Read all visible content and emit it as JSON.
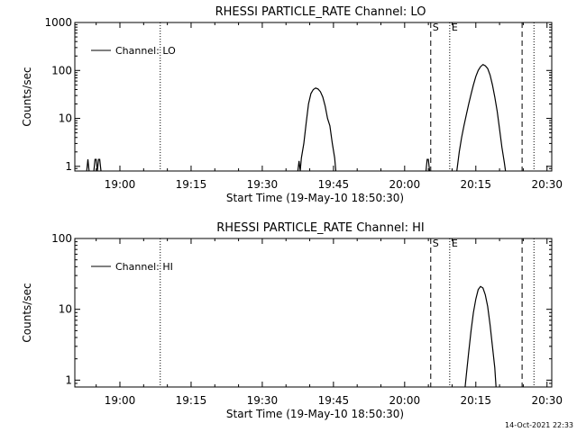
{
  "footer": {
    "timestamp": "14-Oct-2021 22:33"
  },
  "chart_data": [
    {
      "type": "line",
      "title": "RHESSI PARTICLE_RATE Channel: LO",
      "xlabel": "Start Time (19-May-10 18:50:30)",
      "ylabel": "Counts/sec",
      "yscale": "log",
      "ylim": [
        0.8,
        1000
      ],
      "xlim": [
        "18:50:30",
        "20:31:00"
      ],
      "x_ticks": [
        "19:00",
        "19:15",
        "19:30",
        "19:45",
        "20:00",
        "20:15",
        "20:30"
      ],
      "y_ticks": [
        "1",
        "10",
        "100",
        "1000"
      ],
      "legend": {
        "position": "top-left",
        "entries": [
          "Channel: LO"
        ]
      },
      "markers": [
        {
          "label": "",
          "time": "19:08:30",
          "style": "dotted"
        },
        {
          "label": "S",
          "time": "20:05:30",
          "style": "dashed"
        },
        {
          "label": "E",
          "time": "20:09:30",
          "style": "dotted"
        },
        {
          "label": "",
          "time": "20:24:45",
          "style": "dashed"
        },
        {
          "label": "",
          "time": "20:27:15",
          "style": "dotted"
        }
      ],
      "series": [
        {
          "segments": [
            [
              [
                "18:53:00",
                0.8
              ],
              [
                "18:53:15",
                1.4
              ],
              [
                "18:53:30",
                0.8
              ]
            ],
            [
              [
                "18:54:30",
                0.8
              ],
              [
                "18:54:45",
                1.4
              ],
              [
                "18:55:00",
                1.4
              ],
              [
                "18:55:15",
                0.8
              ],
              [
                "18:55:30",
                1.4
              ],
              [
                "18:55:45",
                1.4
              ],
              [
                "18:56:00",
                0.8
              ]
            ],
            [
              [
                "19:37:30",
                0.8
              ],
              [
                "19:37:45",
                1.3
              ],
              [
                "19:38:00",
                0.8
              ],
              [
                "19:38:15",
                1.5
              ],
              [
                "19:38:45",
                3.0
              ],
              [
                "19:39:15",
                8.0
              ],
              [
                "19:39:45",
                20.0
              ],
              [
                "19:40:15",
                33.0
              ],
              [
                "19:40:45",
                40.0
              ],
              [
                "19:41:15",
                43.0
              ],
              [
                "19:41:45",
                41.0
              ],
              [
                "19:42:15",
                36.0
              ],
              [
                "19:42:45",
                28.0
              ],
              [
                "19:43:15",
                18.0
              ],
              [
                "19:43:45",
                10.0
              ],
              [
                "19:44:15",
                7.0
              ],
              [
                "19:44:45",
                3.0
              ],
              [
                "19:45:15",
                1.5
              ],
              [
                "19:45:30",
                0.8
              ]
            ],
            [
              [
                "20:04:30",
                0.8
              ],
              [
                "20:04:45",
                1.4
              ],
              [
                "20:05:00",
                1.4
              ],
              [
                "20:05:15",
                0.8
              ]
            ],
            [
              [
                "20:11:00",
                0.8
              ],
              [
                "20:11:30",
                2.0
              ],
              [
                "20:12:00",
                4.0
              ],
              [
                "20:12:30",
                7.0
              ],
              [
                "20:13:00",
                12.0
              ],
              [
                "20:13:30",
                20.0
              ],
              [
                "20:14:00",
                32.0
              ],
              [
                "20:14:30",
                50.0
              ],
              [
                "20:15:00",
                75.0
              ],
              [
                "20:15:30",
                100.0
              ],
              [
                "20:16:00",
                120.0
              ],
              [
                "20:16:30",
                133.0
              ],
              [
                "20:17:00",
                125.0
              ],
              [
                "20:17:30",
                110.0
              ],
              [
                "20:18:00",
                80.0
              ],
              [
                "20:18:30",
                50.0
              ],
              [
                "20:19:00",
                28.0
              ],
              [
                "20:19:30",
                14.0
              ],
              [
                "20:20:00",
                6.0
              ],
              [
                "20:20:30",
                2.5
              ],
              [
                "20:21:00",
                1.2
              ],
              [
                "20:21:15",
                0.8
              ]
            ]
          ]
        }
      ]
    },
    {
      "type": "line",
      "title": "RHESSI PARTICLE_RATE Channel: HI",
      "xlabel": "Start Time (19-May-10 18:50:30)",
      "ylabel": "Counts/sec",
      "yscale": "log",
      "ylim": [
        0.8,
        100
      ],
      "xlim": [
        "18:50:30",
        "20:31:00"
      ],
      "x_ticks": [
        "19:00",
        "19:15",
        "19:30",
        "19:45",
        "20:00",
        "20:15",
        "20:30"
      ],
      "y_ticks": [
        "1",
        "10",
        "100"
      ],
      "legend": {
        "position": "top-left",
        "entries": [
          "Channel: HI"
        ]
      },
      "markers": [
        {
          "label": "",
          "time": "19:08:30",
          "style": "dotted"
        },
        {
          "label": "S",
          "time": "20:05:30",
          "style": "dashed"
        },
        {
          "label": "E",
          "time": "20:09:30",
          "style": "dotted"
        },
        {
          "label": "",
          "time": "20:24:45",
          "style": "dashed"
        },
        {
          "label": "",
          "time": "20:27:15",
          "style": "dotted"
        }
      ],
      "series": [
        {
          "segments": [
            [
              [
                "20:12:45",
                0.8
              ],
              [
                "20:13:00",
                1.2
              ],
              [
                "20:13:30",
                2.5
              ],
              [
                "20:14:00",
                5.0
              ],
              [
                "20:14:30",
                9.0
              ],
              [
                "20:15:00",
                14.0
              ],
              [
                "20:15:30",
                19.0
              ],
              [
                "20:16:00",
                21.0
              ],
              [
                "20:16:30",
                20.0
              ],
              [
                "20:17:00",
                16.0
              ],
              [
                "20:17:30",
                11.0
              ],
              [
                "20:18:00",
                6.0
              ],
              [
                "20:18:30",
                3.0
              ],
              [
                "20:19:00",
                1.5
              ],
              [
                "20:19:15",
                0.8
              ]
            ]
          ]
        }
      ]
    }
  ]
}
